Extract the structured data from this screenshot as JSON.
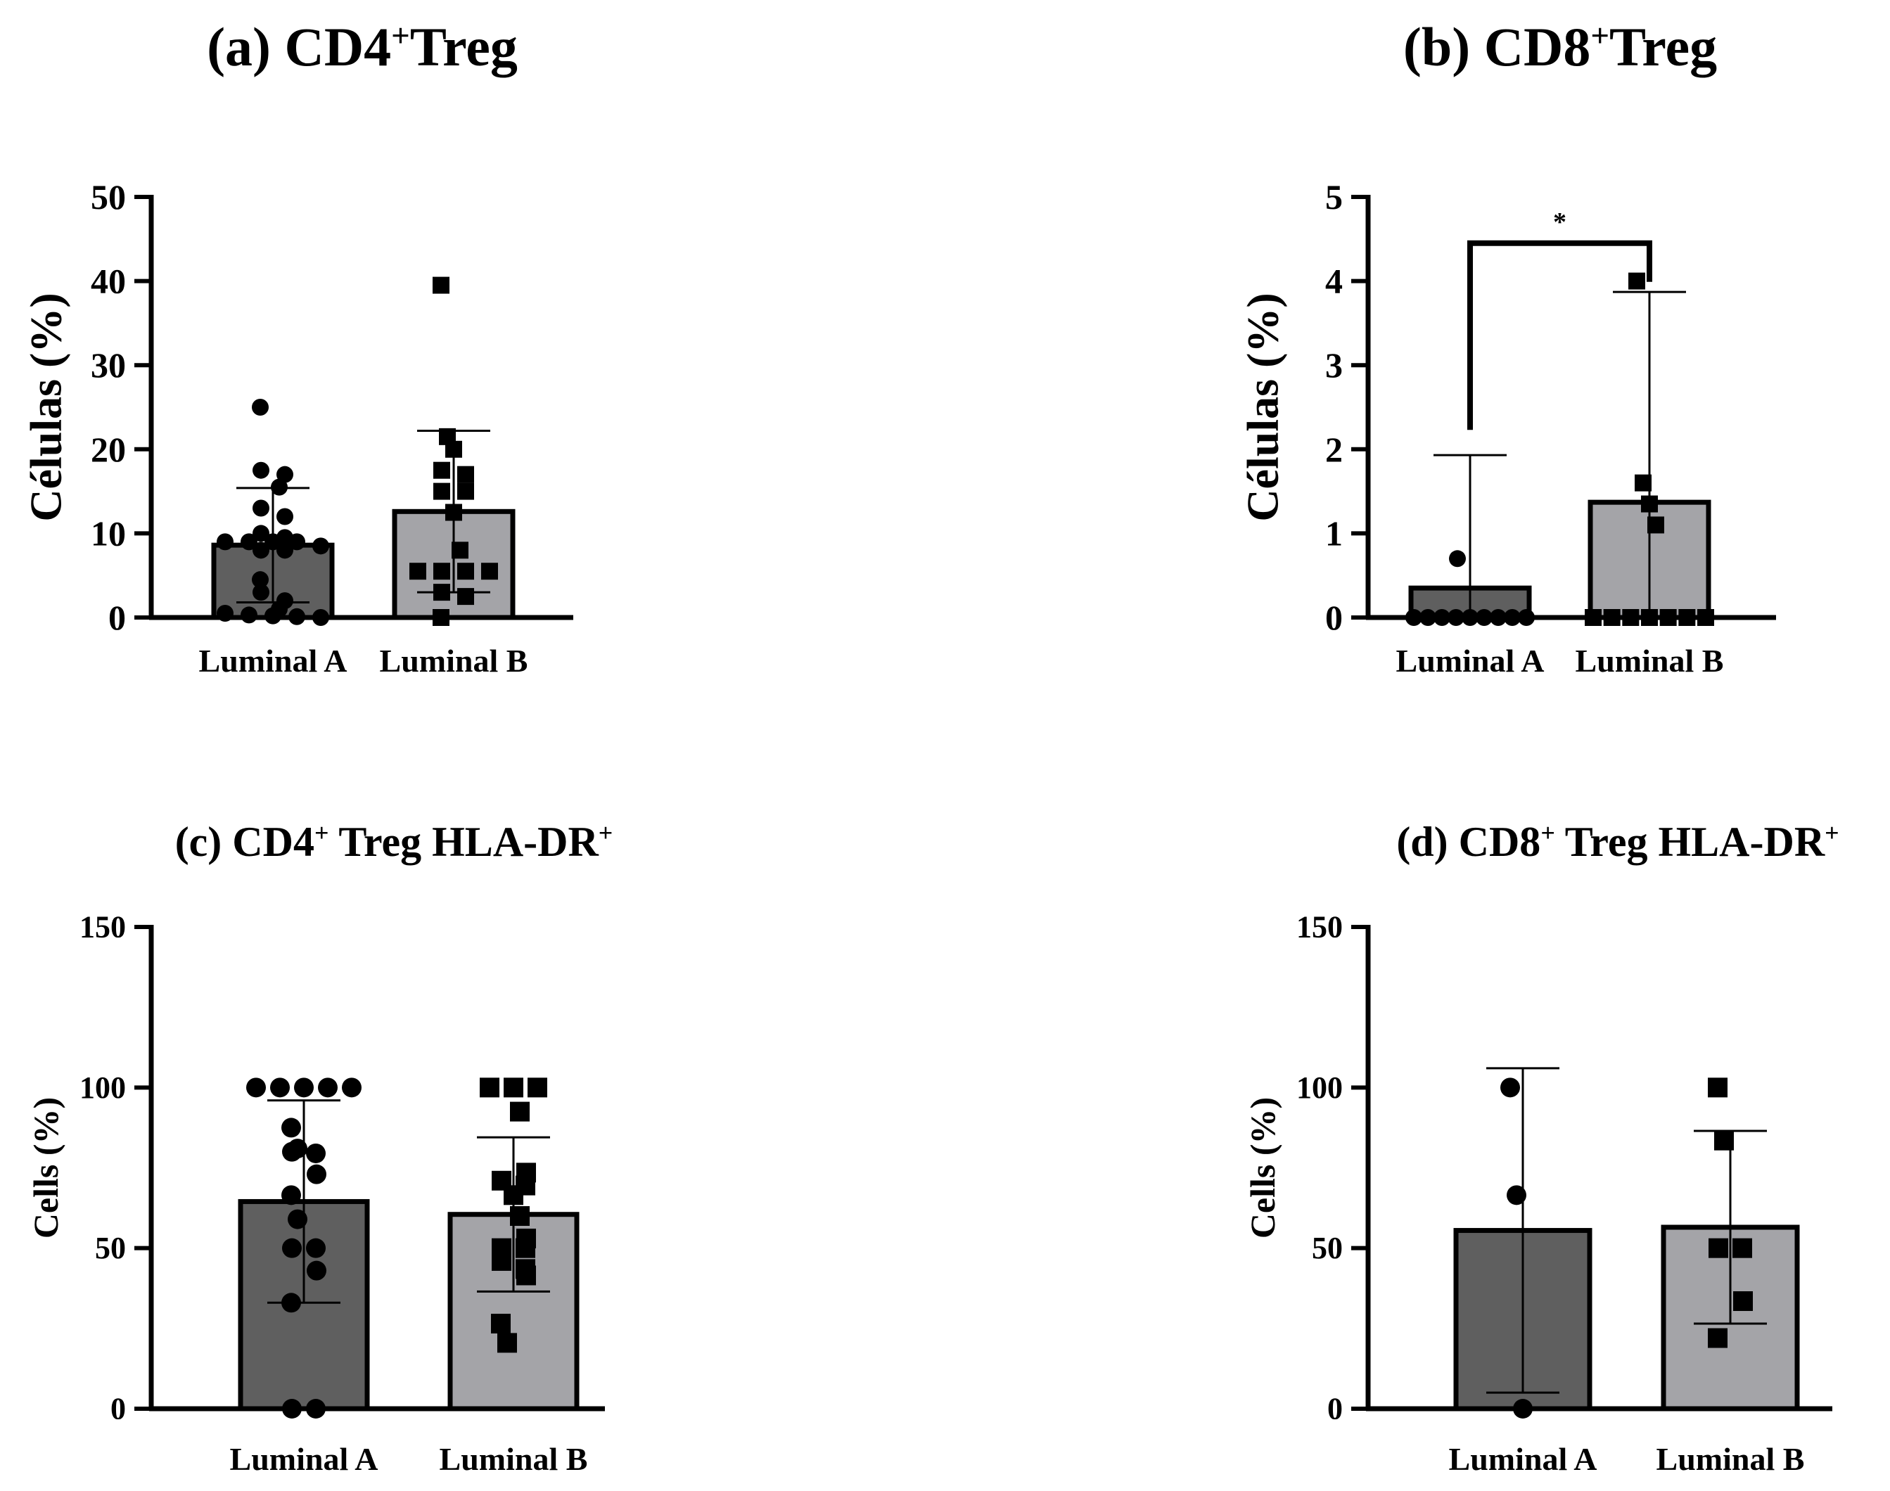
{
  "chart_data": [
    {
      "type": "bar",
      "title_main": "(a) CD4",
      "title_sup": "+",
      "title_rest": "Treg",
      "ylabel": "Células (%)",
      "ylim": [
        0,
        50
      ],
      "yticks": [
        0,
        10,
        20,
        30,
        40,
        50
      ],
      "categories": [
        "Luminal A",
        "Luminal B"
      ],
      "values": [
        8.6,
        12.6
      ],
      "error_sd": [
        6.8,
        9.6
      ],
      "points": [
        [
          25,
          17.5,
          17,
          15.5,
          13,
          12,
          10,
          9.5,
          9,
          9,
          9,
          9,
          8.5,
          8,
          8,
          4.5,
          3,
          2,
          1,
          0.5,
          0.3,
          0.2,
          0.1,
          0
        ],
        [
          39.5,
          21.5,
          20,
          17.5,
          17,
          15,
          15,
          12.5,
          8,
          5.5,
          5.5,
          5.5,
          5.5,
          3,
          2.5,
          0
        ]
      ],
      "markers": [
        "circle",
        "square"
      ],
      "colors": [
        "#5f5f5f",
        "#a4a4a8"
      ],
      "significance": null
    },
    {
      "type": "bar",
      "title_main": "(b) CD8",
      "title_sup": "+",
      "title_rest": "Treg",
      "ylabel": "Células (%)",
      "ylim": [
        0,
        5
      ],
      "yticks": [
        0,
        1,
        2,
        3,
        4,
        5
      ],
      "categories": [
        "Luminal A",
        "Luminal B"
      ],
      "values": [
        0.35,
        1.37
      ],
      "error_sd": [
        1.58,
        2.5
      ],
      "points": [
        [
          0.7,
          0,
          0,
          0,
          0,
          0,
          0,
          0,
          0,
          0
        ],
        [
          4.0,
          1.6,
          1.35,
          1.1,
          0,
          0,
          0,
          0,
          0,
          0,
          0
        ]
      ],
      "markers": [
        "circle",
        "square"
      ],
      "colors": [
        "#5f5f5f",
        "#a4a4a8"
      ],
      "significance": {
        "label": "*",
        "height": 4.45
      }
    },
    {
      "type": "bar",
      "title_main": "(c) CD4",
      "title_sup": "+",
      "title_rest": " Treg HLA-DR",
      "title_sup2": "+",
      "ylabel": "Cells (%)",
      "ylim": [
        0,
        150
      ],
      "yticks": [
        0,
        50,
        100,
        150
      ],
      "categories": [
        "Luminal A",
        "Luminal B"
      ],
      "values": [
        64.5,
        60.5
      ],
      "error_sd": [
        31.5,
        24
      ],
      "points": [
        [
          100,
          100,
          100,
          100,
          100,
          87.5,
          81,
          80,
          79.5,
          73,
          66.5,
          59,
          50,
          50,
          43,
          33,
          0,
          0
        ],
        [
          100,
          100,
          100,
          92.5,
          73.5,
          71,
          69.5,
          66.5,
          60,
          53,
          50,
          50,
          46,
          43.5,
          41.5,
          26.5,
          20.5
        ]
      ],
      "markers": [
        "circle",
        "square"
      ],
      "colors": [
        "#5f5f5f",
        "#a4a4a8"
      ],
      "significance": null
    },
    {
      "type": "bar",
      "title_main": "(d) CD8",
      "title_sup": "+",
      "title_rest": " Treg HLA-DR",
      "title_sup2": "+",
      "ylabel": "Cells (%)",
      "ylim": [
        0,
        150
      ],
      "yticks": [
        0,
        50,
        100,
        150
      ],
      "categories": [
        "Luminal A",
        "Luminal B"
      ],
      "values": [
        55.5,
        56.5
      ],
      "error_sd": [
        50.5,
        30
      ],
      "points": [
        [
          100,
          66.5,
          0
        ],
        [
          100,
          83.5,
          50,
          50,
          33.5,
          22
        ]
      ],
      "markers": [
        "circle",
        "square"
      ],
      "colors": [
        "#5f5f5f",
        "#a4a4a8"
      ],
      "significance": null
    }
  ]
}
